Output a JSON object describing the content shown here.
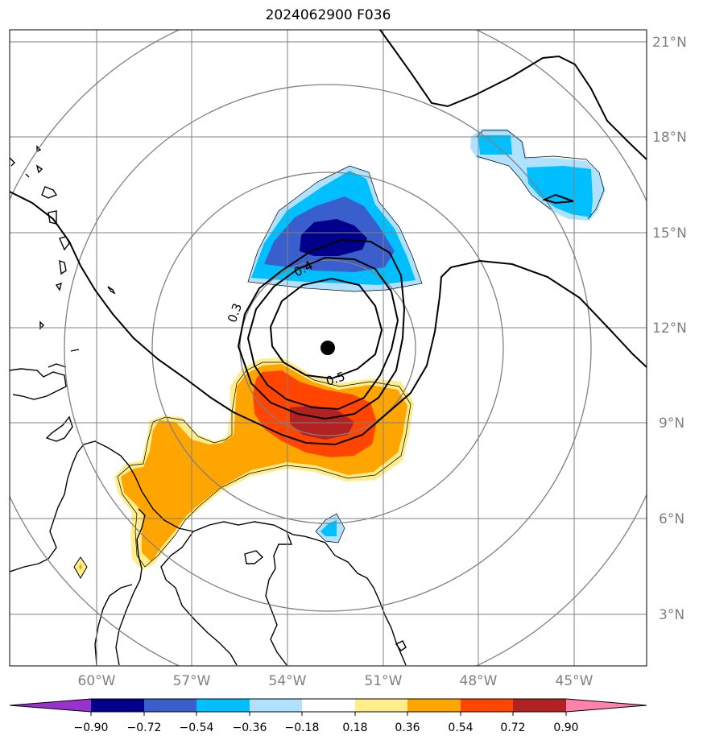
{
  "title": "2024062900 F036",
  "map": {
    "lon_labels": [
      "60°W",
      "57°W",
      "54°W",
      "51°W",
      "48°W",
      "45°W"
    ],
    "lat_labels": [
      "21°N",
      "18°N",
      "15°N",
      "12°N",
      "9°N",
      "6°N",
      "3°N"
    ],
    "contour_labels": [
      "0.3",
      "0.4",
      "0.5"
    ],
    "storm_center": {
      "lon": "52.5°W",
      "lat": "11.4°N"
    }
  },
  "colorbar": {
    "tick_labels": [
      "−0.90",
      "−0.72",
      "−0.54",
      "−0.36",
      "−0.18",
      "0.18",
      "0.36",
      "0.54",
      "0.72",
      "0.90"
    ],
    "colors": [
      "#9932cc",
      "#00008b",
      "#3a5fcd",
      "#00bfff",
      "#b0e2ff",
      "#ffffff",
      "#ffec8b",
      "#ffa500",
      "#ff4500",
      "#b22222",
      "#ff82ab"
    ]
  },
  "colors": {
    "grid": "#808080",
    "coast": "#000000",
    "contour": "#000000"
  }
}
